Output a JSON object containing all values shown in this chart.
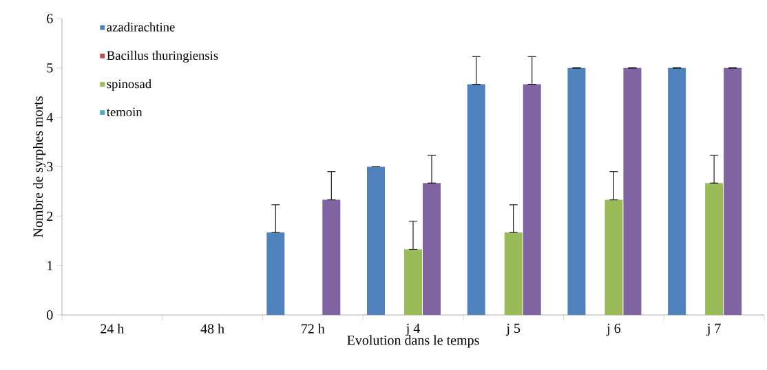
{
  "chart_data": {
    "type": "bar",
    "xlabel": "Evolution dans le temps",
    "ylabel": "Nombre de syrphes morts",
    "categories": [
      "24 h",
      "48 h",
      "72 h",
      "j 4",
      "j 5",
      "j 6",
      "j 7"
    ],
    "series": [
      {
        "name": "azadirachtine",
        "color": "#4f81bd",
        "values": [
          0,
          0,
          1.67,
          3,
          4.67,
          5,
          5
        ],
        "errors": [
          null,
          null,
          [
            1.67,
            2.23
          ],
          [
            3,
            3
          ],
          [
            4.67,
            5.23
          ],
          [
            5,
            5
          ],
          [
            5,
            5
          ]
        ]
      },
      {
        "name": "Bacillus thuringiensis",
        "color": "#c0504d",
        "values": [
          0,
          0,
          0,
          0,
          0,
          0,
          0
        ]
      },
      {
        "name": "spinosad",
        "color": "#9bbb59",
        "values": [
          0,
          0,
          0,
          1.33,
          1.67,
          2.33,
          2.67
        ],
        "errors": [
          null,
          null,
          null,
          [
            1.33,
            1.9
          ],
          [
            1.67,
            2.23
          ],
          [
            2.33,
            2.9
          ],
          [
            2.67,
            3.23
          ]
        ]
      },
      {
        "color": "#8064a2",
        "values": [
          0,
          0,
          2.33,
          2.67,
          4.67,
          5,
          5
        ],
        "errors": [
          null,
          null,
          [
            2.33,
            2.9
          ],
          [
            2.67,
            3.23
          ],
          [
            4.67,
            5.23
          ],
          [
            5,
            5
          ],
          [
            5,
            5
          ]
        ]
      },
      {
        "name": "temoin",
        "color": "#4bacc6",
        "values": [
          0,
          0,
          0,
          0,
          0,
          0,
          0
        ]
      }
    ],
    "ylim": [
      0,
      6
    ],
    "yticks": [
      0,
      1,
      2,
      3,
      4,
      5,
      6
    ],
    "legend": "top left"
  }
}
